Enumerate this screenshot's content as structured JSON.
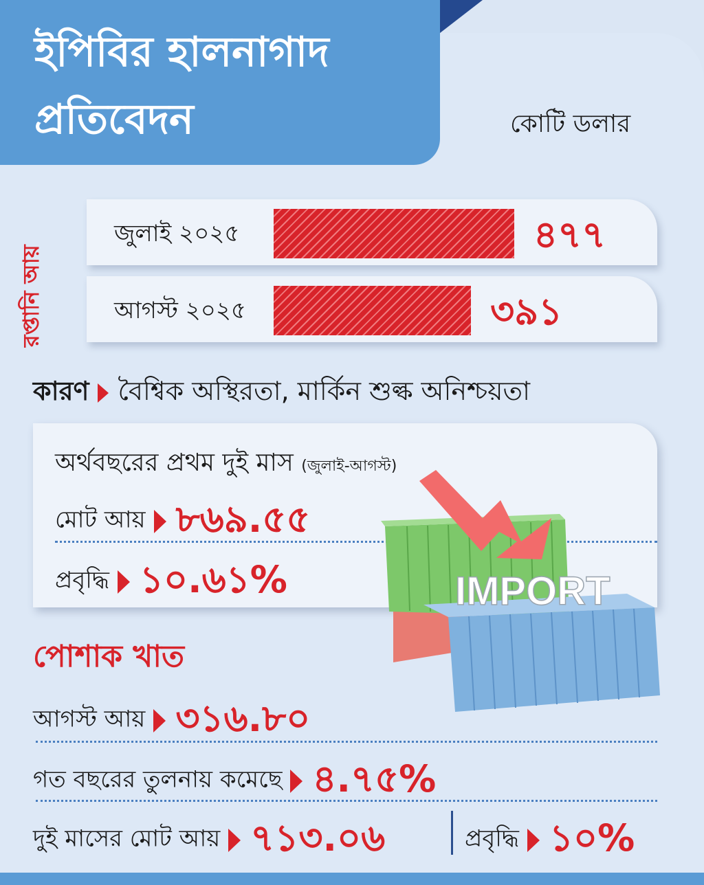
{
  "title": {
    "line1": "ইপিবির হালনাগাদ",
    "line2": "প্রতিবেদন"
  },
  "unit": "কোটি ডলার",
  "chart_side_label": "রপ্তানি আয়",
  "chart_data": {
    "type": "bar",
    "orientation": "horizontal",
    "ylabel": "রপ্তানি আয়",
    "unit": "কোটি ডলার",
    "categories": [
      "জুলাই ২০২৫",
      "আগস্ট ২০২৫"
    ],
    "values": [
      477,
      391
    ],
    "value_labels": [
      "৪৭৭",
      "৩৯১"
    ],
    "xlim": [
      0,
      477
    ],
    "colors": {
      "bar": "#d8232a",
      "value": "#d8232a"
    }
  },
  "reason": {
    "label": "কারণ",
    "text": "বৈশ্বিক অস্থিরতা, মার্কিন শুল্ক অনিশ্চয়তা"
  },
  "two_months": {
    "heading": "অর্থবছরের প্রথম দুই মাস",
    "heading_note": "(জুলাই-আগস্ট)",
    "total_label": "মোট আয়",
    "total_value": "৮৬৯.৫৫",
    "growth_label": "প্রবৃদ্ধি",
    "growth_value": "১০.৬১%"
  },
  "illustration": {
    "label": "IMPORT",
    "icon": "container-down-arrow-icon"
  },
  "garments": {
    "title": "পোশাক খাত",
    "aug_label": "আগস্ট আয়",
    "aug_value": "৩১৬.৮০",
    "decline_label": "গত বছরের তুলনায় কমেছে",
    "decline_value": "৪.৭৫%",
    "two_month_label": "দুই মাসের মোট আয়",
    "two_month_value": "৭১৩.০৬",
    "growth_label": "প্রবৃদ্ধি",
    "growth_value": "১০%"
  },
  "colors": {
    "accent": "#d8232a",
    "title_bg": "#5a9bd5",
    "tab": "#25498f",
    "panel_bg": "#dde8f6"
  }
}
